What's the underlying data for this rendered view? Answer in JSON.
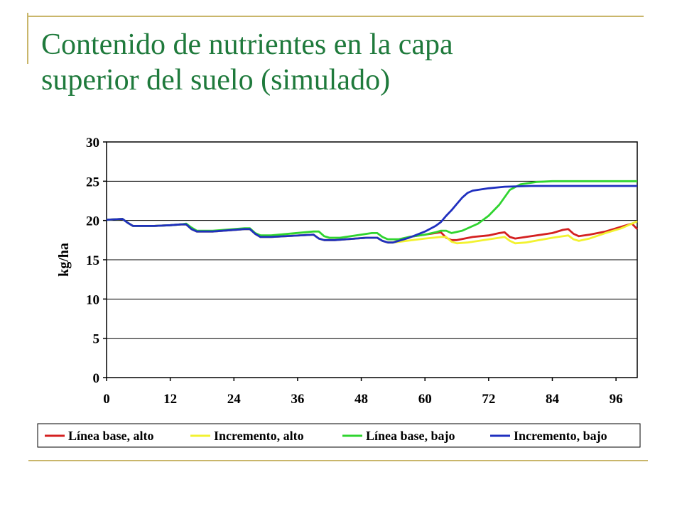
{
  "slide": {
    "title_line1": "Contenido de nutrientes en la capa",
    "title_line2": "superior del suelo (simulado)",
    "title_color": "#1f7a3c",
    "accent_color": "#c9b66b"
  },
  "chart_data": {
    "type": "line",
    "title": "",
    "xlabel": "",
    "ylabel": "kg/ha",
    "xlim": [
      0,
      100
    ],
    "ylim": [
      0,
      30
    ],
    "xticks": [
      0,
      12,
      24,
      36,
      48,
      60,
      72,
      84,
      96
    ],
    "yticks": [
      0,
      5,
      10,
      15,
      20,
      25,
      30
    ],
    "grid": "horizontal",
    "legend_position": "bottom",
    "series": [
      {
        "name": "Línea base, alto",
        "color": "#d42020",
        "points": [
          [
            0,
            20.1
          ],
          [
            3,
            20.2
          ],
          [
            4,
            19.7
          ],
          [
            5,
            19.3
          ],
          [
            9,
            19.3
          ],
          [
            12,
            19.4
          ],
          [
            14,
            19.5
          ],
          [
            15,
            19.5
          ],
          [
            16,
            18.9
          ],
          [
            17,
            18.6
          ],
          [
            20,
            18.6
          ],
          [
            26,
            18.9
          ],
          [
            27,
            18.9
          ],
          [
            28,
            18.3
          ],
          [
            29,
            17.9
          ],
          [
            31,
            17.9
          ],
          [
            39,
            18.2
          ],
          [
            40,
            17.7
          ],
          [
            41,
            17.5
          ],
          [
            43,
            17.5
          ],
          [
            49,
            17.8
          ],
          [
            51,
            17.8
          ],
          [
            52,
            17.4
          ],
          [
            53,
            17.2
          ],
          [
            54,
            17.2
          ],
          [
            57,
            17.9
          ],
          [
            60,
            18.2
          ],
          [
            62,
            18.4
          ],
          [
            63,
            18.5
          ],
          [
            64,
            17.8
          ],
          [
            65,
            17.5
          ],
          [
            66,
            17.5
          ],
          [
            69,
            17.9
          ],
          [
            72,
            18.1
          ],
          [
            74,
            18.4
          ],
          [
            75,
            18.5
          ],
          [
            76,
            17.9
          ],
          [
            77,
            17.7
          ],
          [
            79,
            17.9
          ],
          [
            84,
            18.4
          ],
          [
            86,
            18.8
          ],
          [
            87,
            18.9
          ],
          [
            88,
            18.3
          ],
          [
            89,
            18.0
          ],
          [
            91,
            18.2
          ],
          [
            94,
            18.6
          ],
          [
            97,
            19.2
          ],
          [
            99,
            19.6
          ],
          [
            100,
            18.9
          ]
        ]
      },
      {
        "name": "Incremento, alto",
        "color": "#f2f230",
        "points": [
          [
            0,
            20.1
          ],
          [
            3,
            20.2
          ],
          [
            4,
            19.7
          ],
          [
            5,
            19.3
          ],
          [
            9,
            19.3
          ],
          [
            12,
            19.4
          ],
          [
            14,
            19.5
          ],
          [
            15,
            19.5
          ],
          [
            16,
            18.9
          ],
          [
            17,
            18.6
          ],
          [
            20,
            18.6
          ],
          [
            26,
            18.9
          ],
          [
            27,
            18.9
          ],
          [
            28,
            18.3
          ],
          [
            29,
            17.9
          ],
          [
            31,
            17.9
          ],
          [
            39,
            18.2
          ],
          [
            40,
            17.7
          ],
          [
            41,
            17.5
          ],
          [
            43,
            17.5
          ],
          [
            49,
            17.8
          ],
          [
            51,
            17.8
          ],
          [
            52,
            17.4
          ],
          [
            53,
            17.2
          ],
          [
            54,
            17.2
          ],
          [
            60,
            17.7
          ],
          [
            63,
            17.9
          ],
          [
            64,
            17.9
          ],
          [
            65,
            17.3
          ],
          [
            66,
            17.1
          ],
          [
            68,
            17.2
          ],
          [
            72,
            17.6
          ],
          [
            75,
            17.9
          ],
          [
            76,
            17.4
          ],
          [
            77,
            17.1
          ],
          [
            79,
            17.2
          ],
          [
            84,
            17.8
          ],
          [
            87,
            18.1
          ],
          [
            88,
            17.6
          ],
          [
            89,
            17.4
          ],
          [
            91,
            17.7
          ],
          [
            94,
            18.4
          ],
          [
            97,
            19.0
          ],
          [
            99,
            19.6
          ],
          [
            100,
            19.9
          ]
        ]
      },
      {
        "name": "Línea base, bajo",
        "color": "#2fd42f",
        "points": [
          [
            0,
            20.1
          ],
          [
            3,
            20.2
          ],
          [
            4,
            19.7
          ],
          [
            5,
            19.3
          ],
          [
            9,
            19.3
          ],
          [
            12,
            19.4
          ],
          [
            14,
            19.5
          ],
          [
            15,
            19.6
          ],
          [
            16,
            19.1
          ],
          [
            17,
            18.7
          ],
          [
            20,
            18.7
          ],
          [
            26,
            19.0
          ],
          [
            27,
            19.0
          ],
          [
            28,
            18.4
          ],
          [
            29,
            18.1
          ],
          [
            31,
            18.1
          ],
          [
            39,
            18.6
          ],
          [
            40,
            18.6
          ],
          [
            41,
            18.0
          ],
          [
            42,
            17.8
          ],
          [
            44,
            17.8
          ],
          [
            50,
            18.4
          ],
          [
            51,
            18.4
          ],
          [
            52,
            17.9
          ],
          [
            53,
            17.6
          ],
          [
            55,
            17.6
          ],
          [
            57,
            17.9
          ],
          [
            60,
            18.2
          ],
          [
            62,
            18.5
          ],
          [
            63,
            18.7
          ],
          [
            64,
            18.7
          ],
          [
            65,
            18.4
          ],
          [
            67,
            18.7
          ],
          [
            70,
            19.6
          ],
          [
            72,
            20.6
          ],
          [
            74,
            22.0
          ],
          [
            76,
            23.9
          ],
          [
            78,
            24.6
          ],
          [
            81,
            24.9
          ],
          [
            84,
            25.0
          ],
          [
            100,
            25.0
          ]
        ]
      },
      {
        "name": "Incremento, bajo",
        "color": "#1f2fbf",
        "points": [
          [
            0,
            20.1
          ],
          [
            3,
            20.2
          ],
          [
            4,
            19.7
          ],
          [
            5,
            19.3
          ],
          [
            9,
            19.3
          ],
          [
            12,
            19.4
          ],
          [
            14,
            19.5
          ],
          [
            15,
            19.5
          ],
          [
            16,
            18.9
          ],
          [
            17,
            18.6
          ],
          [
            20,
            18.6
          ],
          [
            26,
            18.9
          ],
          [
            27,
            18.9
          ],
          [
            28,
            18.3
          ],
          [
            29,
            17.9
          ],
          [
            31,
            17.9
          ],
          [
            39,
            18.2
          ],
          [
            40,
            17.7
          ],
          [
            41,
            17.5
          ],
          [
            43,
            17.5
          ],
          [
            49,
            17.8
          ],
          [
            51,
            17.8
          ],
          [
            52,
            17.4
          ],
          [
            53,
            17.2
          ],
          [
            54,
            17.2
          ],
          [
            57,
            17.8
          ],
          [
            60,
            18.6
          ],
          [
            62,
            19.3
          ],
          [
            63,
            19.8
          ],
          [
            64,
            20.6
          ],
          [
            65,
            21.3
          ],
          [
            66,
            22.1
          ],
          [
            67,
            22.9
          ],
          [
            68,
            23.5
          ],
          [
            69,
            23.8
          ],
          [
            72,
            24.1
          ],
          [
            75,
            24.3
          ],
          [
            80,
            24.4
          ],
          [
            100,
            24.4
          ]
        ]
      }
    ]
  }
}
